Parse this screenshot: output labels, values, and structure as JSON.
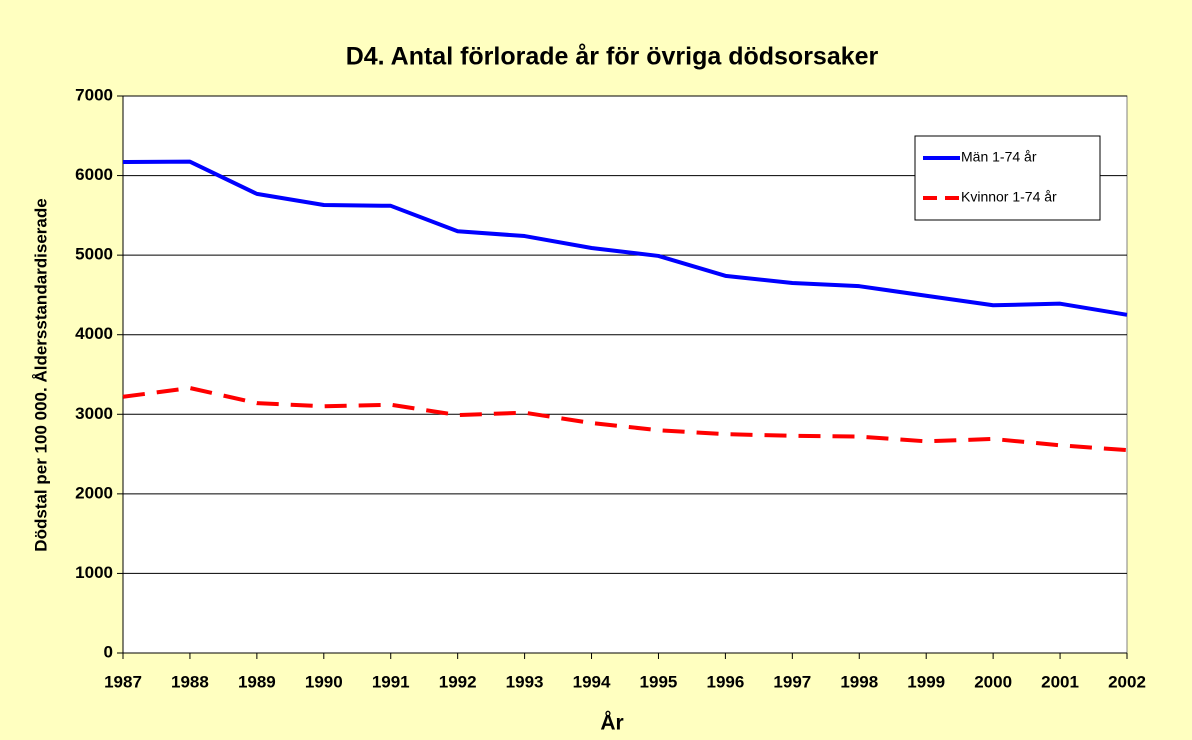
{
  "chart_data": {
    "type": "line",
    "title": "D4. Antal förlorade år för övriga dödsorsaker",
    "x_label": "År",
    "y_label": "Dödstal per 100 000. Åldersstandardiserade",
    "categories": [
      "1987",
      "1988",
      "1989",
      "1990",
      "1991",
      "1992",
      "1993",
      "1994",
      "1995",
      "1996",
      "1997",
      "1998",
      "1999",
      "2000",
      "2001",
      "2002"
    ],
    "series": [
      {
        "name": "Män 1-74 år",
        "color": "#0000ff",
        "dash": false,
        "values": [
          6170,
          6175,
          5770,
          5630,
          5620,
          5300,
          5240,
          5090,
          4990,
          4740,
          4650,
          4610,
          4490,
          4370,
          4390,
          4250
        ]
      },
      {
        "name": "Kvinnor 1-74 år",
        "color": "#ff0000",
        "dash": true,
        "values": [
          3220,
          3330,
          3140,
          3100,
          3120,
          2990,
          3020,
          2890,
          2800,
          2750,
          2730,
          2720,
          2660,
          2690,
          2610,
          2550
        ]
      }
    ],
    "ylim": [
      0,
      7000
    ],
    "yticks": [
      0,
      1000,
      2000,
      3000,
      4000,
      5000,
      6000,
      7000
    ],
    "grid": true,
    "legend": "top-right"
  }
}
